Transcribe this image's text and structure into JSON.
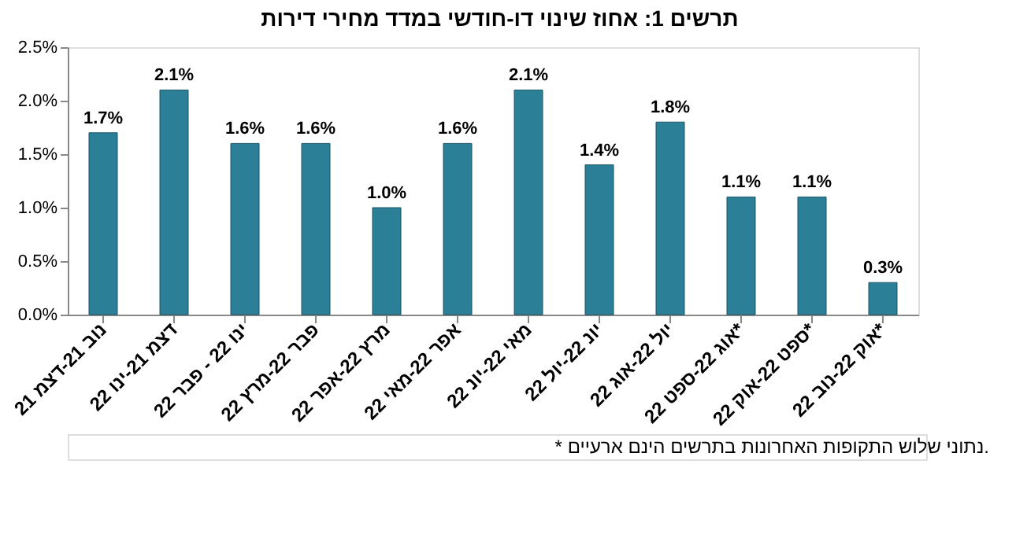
{
  "chart_data": {
    "type": "bar",
    "title": "תרשים 1: אחוז שינוי דו-חודשי במדד מחירי דירות",
    "categories": [
      "נוב 21-דצמ 21",
      "דצמ 21-ינו 22",
      "ינו 22 - פבר 22",
      "פבר 22-מרץ 22",
      "מרץ 22-אפר 22",
      "אפר 22-מאי 22",
      "מאי 22-יונ 22",
      "יונ 22-יול 22",
      "יול 22-אוג 22",
      "אוג 22-ספט 22*",
      "ספט 22-אוק 22*",
      "אוק 22-נוב 22*"
    ],
    "values": [
      1.7,
      2.1,
      1.6,
      1.6,
      1.0,
      1.6,
      2.1,
      1.4,
      1.8,
      1.1,
      1.1,
      0.3
    ],
    "value_labels": [
      "1.7%",
      "2.1%",
      "1.6%",
      "1.6%",
      "1.0%",
      "1.6%",
      "2.1%",
      "1.4%",
      "1.8%",
      "1.1%",
      "1.1%",
      "0.3%"
    ],
    "color": "#2b7f96",
    "ylim": [
      0,
      2.5
    ],
    "yticks": [
      {
        "value": 0,
        "label": "0.0%"
      },
      {
        "value": 0.5,
        "label": "0.5%"
      },
      {
        "value": 1.0,
        "label": "1.0%"
      },
      {
        "value": 1.5,
        "label": "1.5%"
      },
      {
        "value": 2.0,
        "label": "2.0%"
      },
      {
        "value": 2.5,
        "label": "2.5%"
      }
    ],
    "grid": false,
    "annotations": [
      "* נתוני שלוש התקופות האחרונות בתרשים הינם ארעיים."
    ]
  }
}
